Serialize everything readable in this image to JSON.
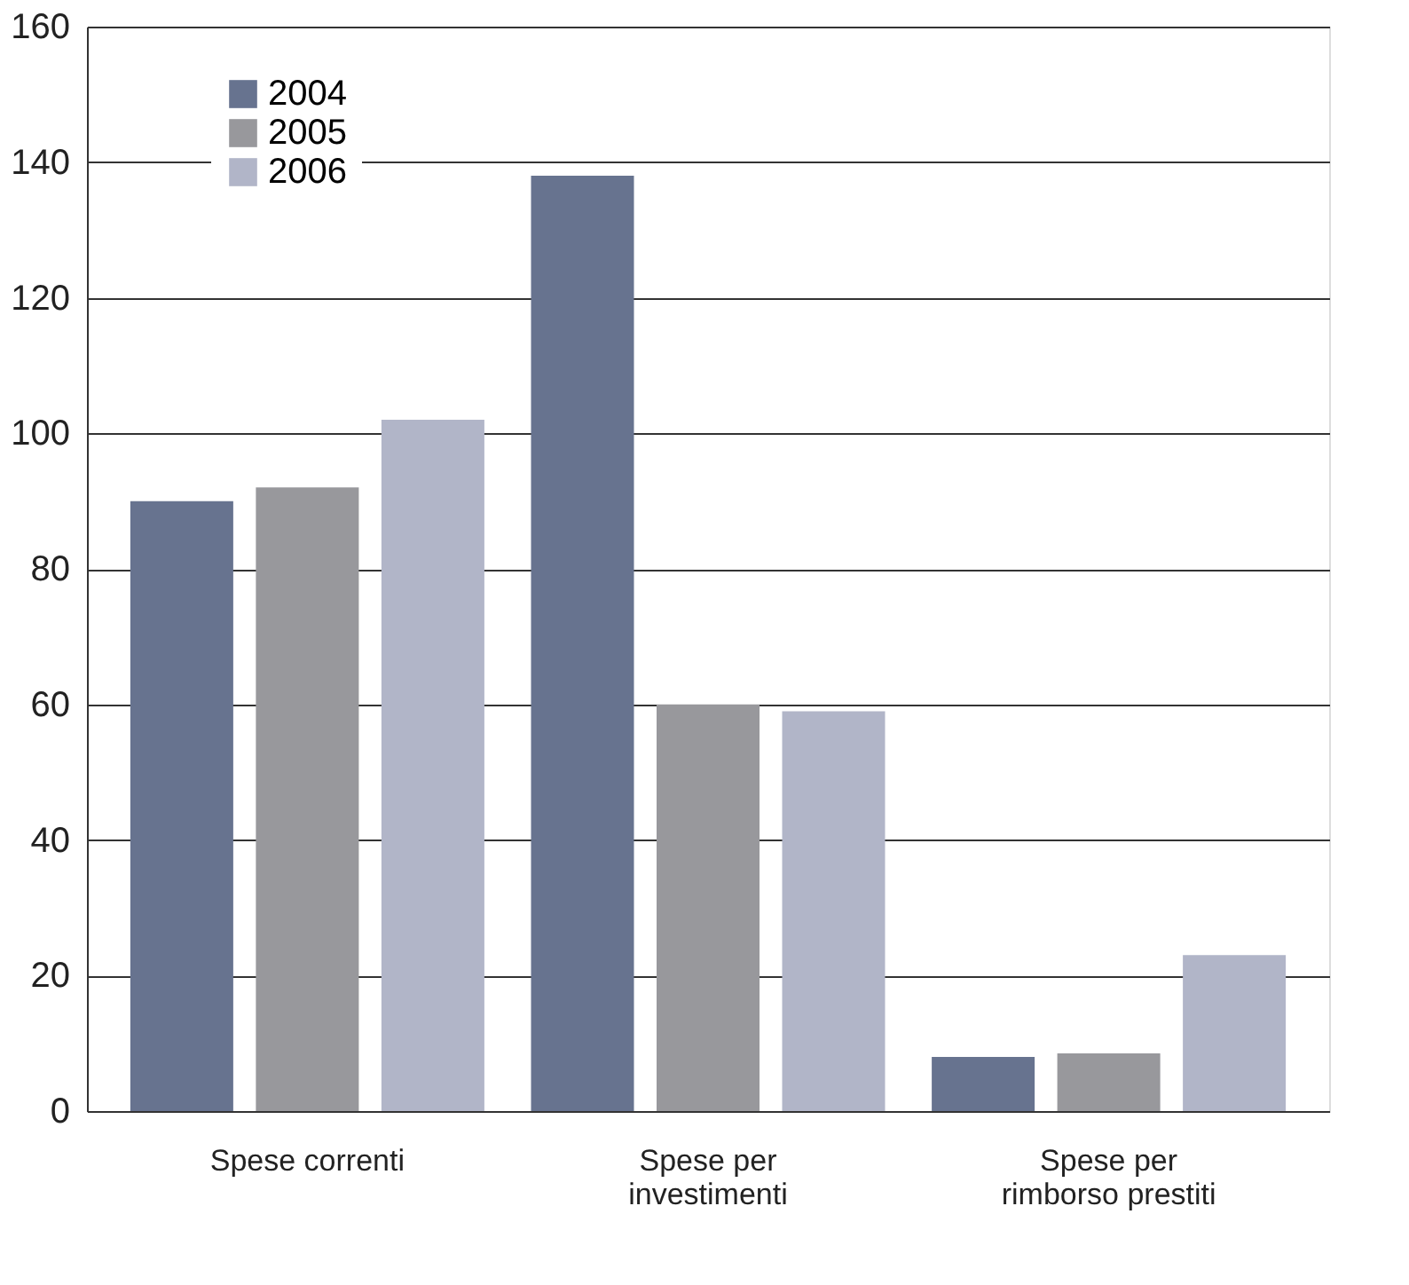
{
  "chart_data": {
    "type": "bar",
    "categories": [
      "Spese correnti",
      "Spese per\ninvestimenti",
      "Spese per\nrimborso prestiti"
    ],
    "series": [
      {
        "name": "2004",
        "color": "#67738f",
        "values": [
          90,
          138,
          8
        ]
      },
      {
        "name": "2005",
        "color": "#98989c",
        "values": [
          92,
          60,
          8.5
        ]
      },
      {
        "name": "2006",
        "color": "#b1b5c8",
        "values": [
          102,
          59,
          23
        ]
      }
    ],
    "ylim": [
      0,
      160
    ],
    "yticks": [
      0,
      20,
      40,
      60,
      80,
      100,
      120,
      140,
      160
    ],
    "grid": "y",
    "legend": "top left"
  }
}
